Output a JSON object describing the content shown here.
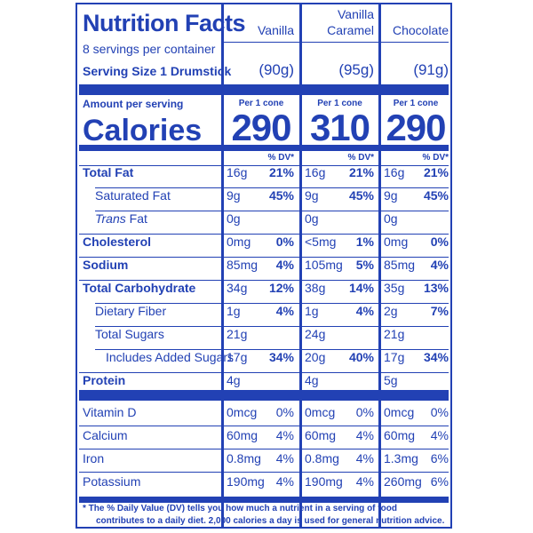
{
  "title": "Nutrition Facts",
  "servings_per_container": "8 servings per container",
  "serving_size_label": "Serving Size 1 Drumstick",
  "flavors": [
    {
      "name_line1": "",
      "name_line2": "Vanilla",
      "serving": "(90g)",
      "per_label": "Per 1 cone",
      "calories": "290"
    },
    {
      "name_line1": "Vanilla",
      "name_line2": "Caramel",
      "serving": "(95g)",
      "per_label": "Per 1 cone",
      "calories": "310"
    },
    {
      "name_line1": "",
      "name_line2": "Chocolate",
      "serving": "(91g)",
      "per_label": "Per 1 cone",
      "calories": "290"
    }
  ],
  "amount_per_serving": "Amount per serving",
  "calories_label": "Calories",
  "dv_header": "% DV*",
  "nutrients": [
    {
      "label": "Total Fat",
      "bold": true,
      "italic_prefix": "",
      "values": [
        [
          "16g",
          "21%"
        ],
        [
          "16g",
          "21%"
        ],
        [
          "16g",
          "21%"
        ]
      ]
    },
    {
      "label": "Saturated Fat",
      "bold": false,
      "italic_prefix": "",
      "values": [
        [
          "9g",
          "45%"
        ],
        [
          "9g",
          "45%"
        ],
        [
          "9g",
          "45%"
        ]
      ]
    },
    {
      "label": " Fat",
      "bold": false,
      "italic_prefix": "Trans",
      "values": [
        [
          "0g",
          ""
        ],
        [
          "0g",
          ""
        ],
        [
          "0g",
          ""
        ]
      ]
    },
    {
      "label": "Cholesterol",
      "bold": true,
      "italic_prefix": "",
      "values": [
        [
          "0mg",
          "0%"
        ],
        [
          "<5mg",
          "1%"
        ],
        [
          "0mg",
          "0%"
        ]
      ]
    },
    {
      "label": "Sodium",
      "bold": true,
      "italic_prefix": "",
      "values": [
        [
          "85mg",
          "4%"
        ],
        [
          "105mg",
          "5%"
        ],
        [
          "85mg",
          "4%"
        ]
      ]
    },
    {
      "label": "Total Carbohydrate",
      "bold": true,
      "italic_prefix": "",
      "values": [
        [
          "34g",
          "12%"
        ],
        [
          "38g",
          "14%"
        ],
        [
          "35g",
          "13%"
        ]
      ]
    },
    {
      "label": "Dietary Fiber",
      "bold": false,
      "italic_prefix": "",
      "values": [
        [
          "1g",
          "4%"
        ],
        [
          "1g",
          "4%"
        ],
        [
          "2g",
          "7%"
        ]
      ]
    },
    {
      "label": "Total Sugars",
      "bold": false,
      "italic_prefix": "",
      "values": [
        [
          "21g",
          ""
        ],
        [
          "24g",
          ""
        ],
        [
          "21g",
          ""
        ]
      ]
    },
    {
      "label": "Includes Added Sugars",
      "bold": false,
      "italic_prefix": "",
      "values": [
        [
          "17g",
          "34%"
        ],
        [
          "20g",
          "40%"
        ],
        [
          "17g",
          "34%"
        ]
      ]
    },
    {
      "label": "Protein",
      "bold": true,
      "italic_prefix": "",
      "values": [
        [
          "4g",
          ""
        ],
        [
          "4g",
          ""
        ],
        [
          "5g",
          ""
        ]
      ]
    }
  ],
  "vitamins": [
    {
      "label": "Vitamin D",
      "values": [
        [
          "0mcg",
          "0%"
        ],
        [
          "0mcg",
          "0%"
        ],
        [
          "0mcg",
          "0%"
        ]
      ]
    },
    {
      "label": "Calcium",
      "values": [
        [
          "60mg",
          "4%"
        ],
        [
          "60mg",
          "4%"
        ],
        [
          "60mg",
          "4%"
        ]
      ]
    },
    {
      "label": "Iron",
      "values": [
        [
          "0.8mg",
          "4%"
        ],
        [
          "0.8mg",
          "4%"
        ],
        [
          "1.3mg",
          "6%"
        ]
      ]
    },
    {
      "label": "Potassium",
      "values": [
        [
          "190mg",
          "4%"
        ],
        [
          "190mg",
          "4%"
        ],
        [
          "260mg",
          "6%"
        ]
      ]
    }
  ],
  "footnote_line1": "* The % Daily Value (DV) tells you how much a nutrient in a serving of food",
  "footnote_line2": "contributes to a daily diet. 2,000 calories a day is used for general nutrition advice.",
  "colors": {
    "ink": "#2241b4",
    "background": "#ffffff"
  }
}
